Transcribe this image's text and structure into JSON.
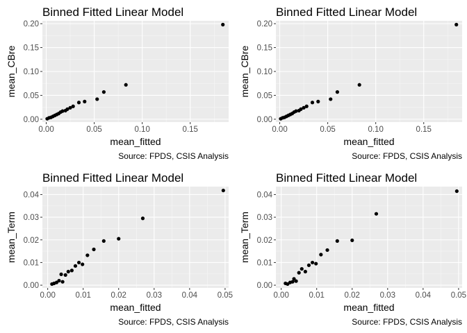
{
  "chart_data": [
    {
      "type": "scatter",
      "title": "Binned Fitted Linear Model",
      "xlabel": "mean_fitted",
      "ylabel": "mean_CBre",
      "caption": "Source: FPDS, CSIS Analysis",
      "xlim": [
        -0.004,
        0.19
      ],
      "ylim": [
        -0.006,
        0.206
      ],
      "xticks": [
        0.0,
        0.05,
        0.1,
        0.15
      ],
      "xtick_labels": [
        "0.00",
        "0.05",
        "0.10",
        "0.15"
      ],
      "yticks": [
        0.0,
        0.05,
        0.1,
        0.15,
        0.2
      ],
      "ytick_labels": [
        "0.00",
        "0.05",
        "0.10",
        "0.15",
        "0.20"
      ],
      "points": [
        {
          "x": 0.001,
          "y": 0.001
        },
        {
          "x": 0.003,
          "y": 0.003
        },
        {
          "x": 0.005,
          "y": 0.004
        },
        {
          "x": 0.007,
          "y": 0.006
        },
        {
          "x": 0.009,
          "y": 0.008
        },
        {
          "x": 0.011,
          "y": 0.01
        },
        {
          "x": 0.013,
          "y": 0.012
        },
        {
          "x": 0.015,
          "y": 0.015
        },
        {
          "x": 0.017,
          "y": 0.017
        },
        {
          "x": 0.02,
          "y": 0.018
        },
        {
          "x": 0.022,
          "y": 0.021
        },
        {
          "x": 0.025,
          "y": 0.024
        },
        {
          "x": 0.028,
          "y": 0.027
        },
        {
          "x": 0.034,
          "y": 0.035
        },
        {
          "x": 0.04,
          "y": 0.037
        },
        {
          "x": 0.053,
          "y": 0.042
        },
        {
          "x": 0.06,
          "y": 0.057
        },
        {
          "x": 0.083,
          "y": 0.072
        },
        {
          "x": 0.184,
          "y": 0.198
        }
      ],
      "grid": true,
      "background": "#ebebeb",
      "point_color": "#000000"
    },
    {
      "type": "scatter",
      "title": "Binned Fitted Linear Model",
      "xlabel": "mean_fitted",
      "ylabel": "mean_CBre",
      "caption": "Source: FPDS, CSIS Analysis",
      "xlim": [
        -0.004,
        0.19
      ],
      "ylim": [
        -0.006,
        0.206
      ],
      "xticks": [
        0.0,
        0.05,
        0.1,
        0.15
      ],
      "xtick_labels": [
        "0.00",
        "0.05",
        "0.10",
        "0.15"
      ],
      "yticks": [
        0.0,
        0.05,
        0.1,
        0.15,
        0.2
      ],
      "ytick_labels": [
        "0.00",
        "0.05",
        "0.10",
        "0.15",
        "0.20"
      ],
      "points": [
        {
          "x": 0.001,
          "y": 0.001
        },
        {
          "x": 0.003,
          "y": 0.003
        },
        {
          "x": 0.005,
          "y": 0.004
        },
        {
          "x": 0.007,
          "y": 0.006
        },
        {
          "x": 0.009,
          "y": 0.008
        },
        {
          "x": 0.011,
          "y": 0.01
        },
        {
          "x": 0.013,
          "y": 0.012
        },
        {
          "x": 0.015,
          "y": 0.015
        },
        {
          "x": 0.017,
          "y": 0.017
        },
        {
          "x": 0.02,
          "y": 0.018
        },
        {
          "x": 0.022,
          "y": 0.021
        },
        {
          "x": 0.025,
          "y": 0.024
        },
        {
          "x": 0.028,
          "y": 0.027
        },
        {
          "x": 0.034,
          "y": 0.035
        },
        {
          "x": 0.04,
          "y": 0.037
        },
        {
          "x": 0.053,
          "y": 0.042
        },
        {
          "x": 0.06,
          "y": 0.057
        },
        {
          "x": 0.083,
          "y": 0.072
        },
        {
          "x": 0.184,
          "y": 0.198
        }
      ],
      "grid": true,
      "background": "#ebebeb",
      "point_color": "#000000"
    },
    {
      "type": "scatter",
      "title": "Binned Fitted Linear Model",
      "xlabel": "mean_fitted",
      "ylabel": "mean_Term",
      "caption": "Source: FPDS, CSIS Analysis",
      "xlim": [
        -0.0015,
        0.051
      ],
      "ylim": [
        -0.0012,
        0.0435
      ],
      "xticks": [
        0.0,
        0.01,
        0.02,
        0.03,
        0.04,
        0.05
      ],
      "xtick_labels": [
        "0.00",
        "0.01",
        "0.02",
        "0.03",
        "0.04",
        "0.05"
      ],
      "yticks": [
        0.0,
        0.01,
        0.02,
        0.03,
        0.04
      ],
      "ytick_labels": [
        "0.00",
        "0.01",
        "0.02",
        "0.03",
        "0.04"
      ],
      "points": [
        {
          "x": 0.0012,
          "y": 0.0005
        },
        {
          "x": 0.0018,
          "y": 0.0008
        },
        {
          "x": 0.0025,
          "y": 0.0012
        },
        {
          "x": 0.0032,
          "y": 0.002
        },
        {
          "x": 0.0038,
          "y": 0.0048
        },
        {
          "x": 0.0042,
          "y": 0.0015
        },
        {
          "x": 0.005,
          "y": 0.0045
        },
        {
          "x": 0.0058,
          "y": 0.006
        },
        {
          "x": 0.0068,
          "y": 0.0065
        },
        {
          "x": 0.0078,
          "y": 0.0085
        },
        {
          "x": 0.0088,
          "y": 0.01
        },
        {
          "x": 0.0098,
          "y": 0.0092
        },
        {
          "x": 0.0112,
          "y": 0.0132
        },
        {
          "x": 0.013,
          "y": 0.0158
        },
        {
          "x": 0.0158,
          "y": 0.0195
        },
        {
          "x": 0.02,
          "y": 0.0205
        },
        {
          "x": 0.0268,
          "y": 0.0295
        },
        {
          "x": 0.0495,
          "y": 0.0418
        }
      ],
      "grid": true,
      "background": "#ebebeb",
      "point_color": "#000000"
    },
    {
      "type": "scatter",
      "title": "Binned Fitted Linear Model",
      "xlabel": "mean_fitted",
      "ylabel": "mean_Term",
      "caption": "Source: FPDS, CSIS Analysis",
      "xlim": [
        -0.0015,
        0.051
      ],
      "ylim": [
        -0.0012,
        0.0435
      ],
      "xticks": [
        0.0,
        0.01,
        0.02,
        0.03,
        0.04,
        0.05
      ],
      "xtick_labels": [
        "0.00",
        "0.01",
        "0.02",
        "0.03",
        "0.04",
        "0.05"
      ],
      "yticks": [
        0.0,
        0.01,
        0.02,
        0.03,
        0.04
      ],
      "ytick_labels": [
        "0.00",
        "0.01",
        "0.02",
        "0.03",
        "0.04"
      ],
      "points": [
        {
          "x": 0.0012,
          "y": 0.0008
        },
        {
          "x": 0.0018,
          "y": 0.0005
        },
        {
          "x": 0.0025,
          "y": 0.0012
        },
        {
          "x": 0.0032,
          "y": 0.0015
        },
        {
          "x": 0.0036,
          "y": 0.0028
        },
        {
          "x": 0.0042,
          "y": 0.0018
        },
        {
          "x": 0.005,
          "y": 0.0055
        },
        {
          "x": 0.0058,
          "y": 0.0072
        },
        {
          "x": 0.0068,
          "y": 0.006
        },
        {
          "x": 0.0078,
          "y": 0.0088
        },
        {
          "x": 0.0088,
          "y": 0.01
        },
        {
          "x": 0.0098,
          "y": 0.0095
        },
        {
          "x": 0.0112,
          "y": 0.0135
        },
        {
          "x": 0.013,
          "y": 0.0155
        },
        {
          "x": 0.0158,
          "y": 0.0195
        },
        {
          "x": 0.02,
          "y": 0.0198
        },
        {
          "x": 0.0268,
          "y": 0.0315
        },
        {
          "x": 0.0495,
          "y": 0.0415
        }
      ],
      "grid": true,
      "background": "#ebebeb",
      "point_color": "#000000"
    }
  ]
}
